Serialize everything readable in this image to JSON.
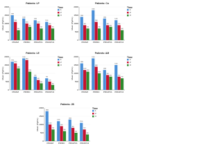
{
  "chart_data": [
    {
      "type": "bar",
      "title": "Patients: LP",
      "y_label": "Mean (Pg/mL)",
      "legend_title": "Time",
      "categories": [
        "PRIAM",
        "PRIMC",
        "PRIAPC1",
        "PRIAPC2"
      ],
      "series": [
        {
          "name": "1",
          "color": "#4a90d9",
          "values": [
            1500,
            1300,
            1200,
            1100
          ]
        },
        {
          "name": "2",
          "color": "#c8102e",
          "values": [
            1100,
            1000,
            1000,
            900
          ]
        },
        {
          "name": "3",
          "color": "#2e8b2e",
          "values": [
            600,
            800,
            700,
            700
          ]
        }
      ],
      "ylim": [
        0,
        2000
      ],
      "yticks": [
        0,
        500,
        1000,
        1500,
        2000
      ]
    },
    {
      "type": "bar",
      "title": "Patients: Co",
      "y_label": "Mean (Pg/mL)",
      "legend_title": "Time",
      "categories": [
        "PRIAM",
        "PRIMC",
        "PRIAPC1",
        "PRIAPC2"
      ],
      "series": [
        {
          "name": "1",
          "color": "#4a90d9",
          "values": [
            1400,
            1800,
            1300,
            1200
          ]
        },
        {
          "name": "2",
          "color": "#c8102e",
          "values": [
            900,
            1100,
            900,
            900
          ]
        },
        {
          "name": "3",
          "color": "#2e8b2e",
          "values": [
            700,
            700,
            800,
            600
          ]
        }
      ],
      "ylim": [
        0,
        2000
      ],
      "yticks": [
        0,
        500,
        1000,
        1500,
        2000
      ]
    },
    {
      "type": "bar",
      "title": "Patients: LE",
      "y_label": "Mean (Pg/mL)",
      "legend_title": "Time",
      "categories": [
        "PRIAM",
        "PRIMC",
        "PRIAPC1",
        "PRIAPC2"
      ],
      "series": [
        {
          "name": "1",
          "color": "#4a90d9",
          "values": [
            1700,
            1900,
            800,
            700
          ]
        },
        {
          "name": "2",
          "color": "#c8102e",
          "values": [
            1600,
            1800,
            600,
            500
          ]
        },
        {
          "name": "3",
          "color": "#2e8b2e",
          "values": [
            1300,
            1100,
            400,
            300
          ]
        }
      ],
      "ylim": [
        0,
        2000
      ],
      "yticks": [
        0,
        500,
        1000,
        1500,
        2000
      ]
    },
    {
      "type": "bar",
      "title": "Patients: AM",
      "y_label": "Mean (Pg/mL)",
      "legend_title": "Time",
      "categories": [
        "PRIAM",
        "PRIMC",
        "PRIAPC1",
        "PRIAPC2"
      ],
      "series": [
        {
          "name": "1",
          "color": "#4a90d9",
          "values": [
            1600,
            1900,
            1200,
            1500
          ]
        },
        {
          "name": "2",
          "color": "#c8102e",
          "values": [
            1200,
            1400,
            900,
            800
          ]
        },
        {
          "name": "3",
          "color": "#2e8b2e",
          "values": [
            1100,
            1000,
            800,
            700
          ]
        }
      ],
      "ylim": [
        0,
        2000
      ],
      "yticks": [
        0,
        500,
        1000,
        1500,
        2000
      ]
    },
    {
      "type": "bar",
      "title": "Patients: JB",
      "y_label": "Mean (Pg/mL)",
      "legend_title": "Time",
      "categories": [
        "PRIAM",
        "PRIMC",
        "PRIAPC1",
        "PRIAPC2"
      ],
      "series": [
        {
          "name": "1",
          "color": "#4a90d9",
          "values": [
            1800,
            1200,
            1300,
            1100
          ]
        },
        {
          "name": "2",
          "color": "#c8102e",
          "values": [
            1000,
            900,
            800,
            700
          ]
        },
        {
          "name": "3",
          "color": "#2e8b2e",
          "values": [
            700,
            600,
            500,
            400
          ]
        }
      ],
      "ylim": [
        0,
        2000
      ],
      "yticks": [
        0,
        500,
        1000,
        1500,
        2000
      ]
    }
  ]
}
